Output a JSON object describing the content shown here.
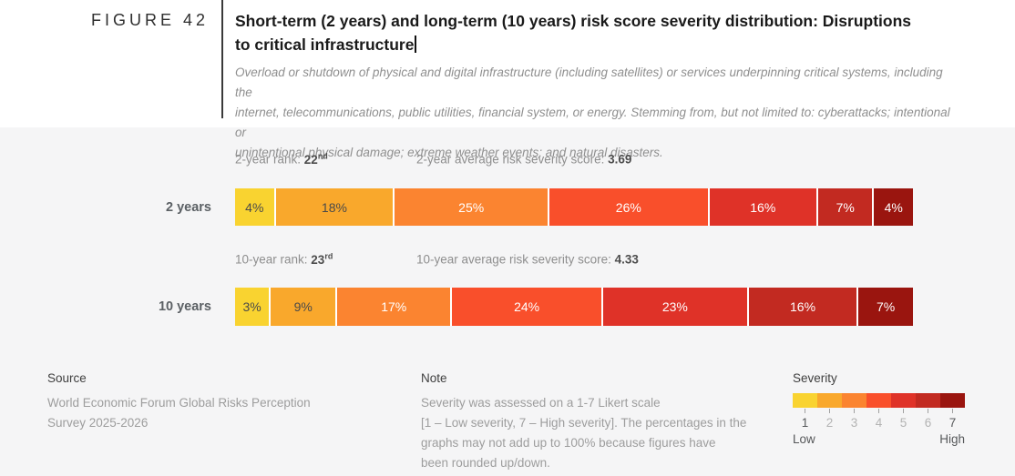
{
  "figure": {
    "label": "FIGURE 42"
  },
  "header": {
    "title_lines": [
      "Short-term (2 years) and long-term (10 years) risk score severity distribution: Disruptions",
      "to critical infrastructure"
    ],
    "description_lines": [
      "Overload or shutdown of physical and digital infrastructure (including satellites) or services underpinning critical systems, including the",
      "internet, telecommunications, public utilities, financial system, or energy. Stemming from, but not limited to: cyberattacks; intentional or",
      "unintentional physical damage; extreme weather events; and natural disasters."
    ]
  },
  "chart_data": {
    "type": "bar",
    "subtype": "horizontal-stacked-percentage",
    "title": "Short-term (2 years) and long-term (10 years) risk score severity distribution: Disruptions to critical infrastructure",
    "severity_levels": [
      "1",
      "2",
      "3",
      "4",
      "5",
      "6",
      "7"
    ],
    "palette": [
      "#F9D330",
      "#F9A82C",
      "#FB8430",
      "#F94F2B",
      "#DF3228",
      "#C22A21",
      "#9A150F"
    ],
    "dark_label_color": "#4a4a4a",
    "light_label_color": "#ffffff",
    "dark_label_segment_count": 2,
    "rows": [
      {
        "label": "2 years",
        "rank_label": "2-year rank:",
        "rank_value": "22",
        "rank_ordinal": "nd",
        "score_label": "2-year average risk severity score:",
        "score_value": "3.69",
        "values": [
          4,
          18,
          25,
          26,
          16,
          7,
          4
        ],
        "value_labels": [
          "4%",
          "18%",
          "25%",
          "26%",
          "16%",
          "7%",
          "4%"
        ]
      },
      {
        "label": "10 years",
        "rank_label": "10-year rank:",
        "rank_value": "23",
        "rank_ordinal": "rd",
        "score_label": "10-year average risk severity score:",
        "score_value": "4.33",
        "values": [
          3,
          9,
          17,
          24,
          23,
          16,
          7
        ],
        "value_labels": [
          "3%",
          "9%",
          "17%",
          "24%",
          "23%",
          "16%",
          "7%"
        ]
      }
    ]
  },
  "footer": {
    "source": {
      "heading": "Source",
      "lines": [
        "World Economic Forum Global Risks Perception",
        "Survey 2025-2026"
      ]
    },
    "note": {
      "heading": "Note",
      "lines": [
        "Severity was assessed on a 1-7 Likert scale",
        "[1 – Low severity, 7 – High severity]. The percentages in the",
        "graphs may not add up to 100% because figures have",
        "been rounded up/down."
      ]
    },
    "legend": {
      "heading": "Severity",
      "tick_labels": [
        "1",
        "2",
        "3",
        "4",
        "5",
        "6",
        "7"
      ],
      "low_label": "Low",
      "high_label": "High"
    }
  }
}
